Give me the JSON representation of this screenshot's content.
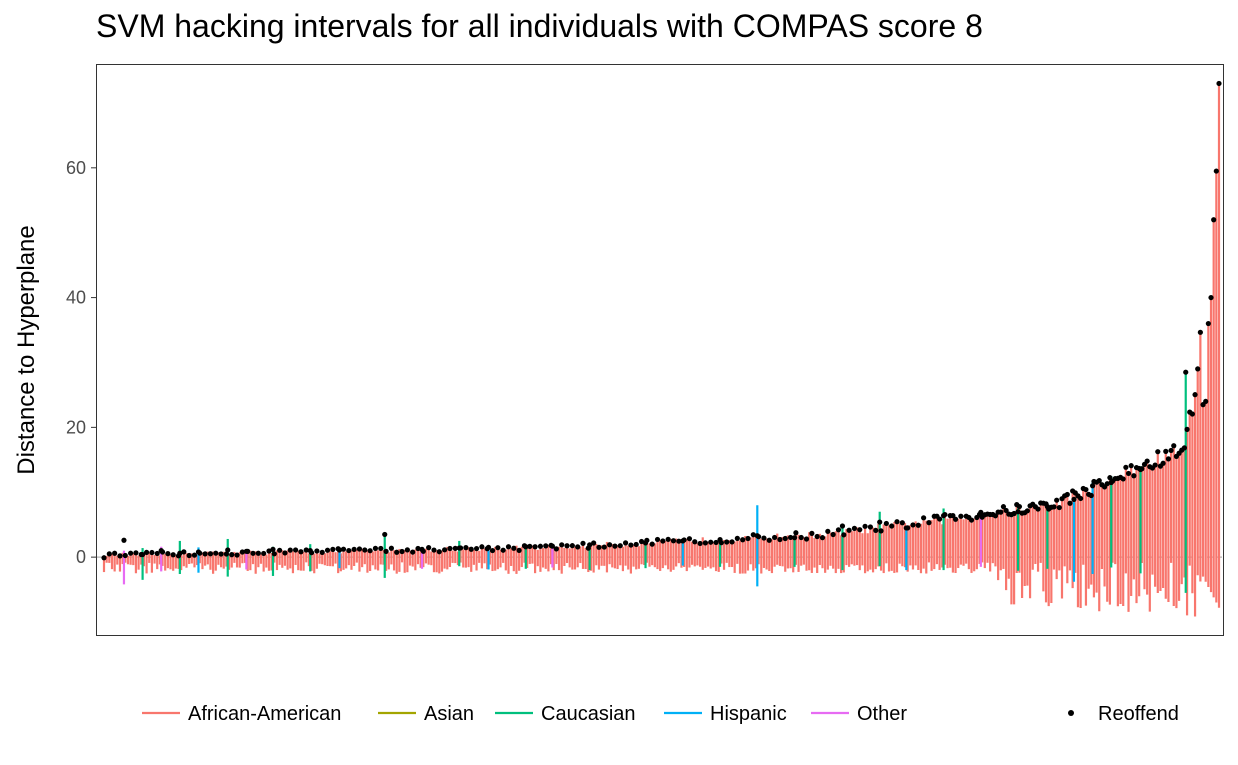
{
  "chart_data": {
    "type": "interval",
    "title": "SVM hacking intervals for all individuals with COMPAS score 8",
    "xlabel": "",
    "ylabel": "Distance to Hyperplane",
    "ylim": [
      -12,
      76
    ],
    "yticks": [
      0,
      20,
      40,
      60
    ],
    "grid": false,
    "reference_line": 0,
    "legend_position": "bottom",
    "series": [
      {
        "name": "African-American",
        "color": "#F8766D"
      },
      {
        "name": "Asian",
        "color": "#A3A500"
      },
      {
        "name": "Caucasian",
        "color": "#00BF7D"
      },
      {
        "name": "Hispanic",
        "color": "#00B0F6"
      },
      {
        "name": "Other",
        "color": "#E76BF3"
      }
    ],
    "points_legend": "Reoffend",
    "highlights": [
      {
        "index": 2,
        "group": "Other",
        "low": -4.2,
        "high": 1.0,
        "point": 2.6
      },
      {
        "index": 4,
        "group": "Caucasian",
        "low": -3.5,
        "high": 1.4,
        "point": 0.4
      },
      {
        "index": 6,
        "group": "Other",
        "low": -2.2,
        "high": 1.6,
        "point": 1.0
      },
      {
        "index": 8,
        "group": "Caucasian",
        "low": -2.6,
        "high": 2.5,
        "point": 0.6
      },
      {
        "index": 10,
        "group": "Hispanic",
        "low": -2.4,
        "high": 1.5,
        "point": 0.8
      },
      {
        "index": 13,
        "group": "Caucasian",
        "low": -3.0,
        "high": 2.8,
        "point": 1.1
      },
      {
        "index": 15,
        "group": "Other",
        "low": -1.9,
        "high": 1.2,
        "point": 0.9
      },
      {
        "index": 18,
        "group": "Caucasian",
        "low": -2.9,
        "high": 1.6,
        "point": 1.2
      },
      {
        "index": 22,
        "group": "Caucasian",
        "low": -2.2,
        "high": 2.0,
        "point": 1.0
      },
      {
        "index": 25,
        "group": "Hispanic",
        "low": -1.7,
        "high": 1.1,
        "point": 1.1
      },
      {
        "index": 30,
        "group": "Caucasian",
        "low": -3.2,
        "high": 3.5,
        "point": 3.5
      },
      {
        "index": 34,
        "group": "Other",
        "low": -1.8,
        "high": 1.2,
        "point": 1.2
      },
      {
        "index": 38,
        "group": "Caucasian",
        "low": -1.4,
        "high": 2.5,
        "point": 1.4
      },
      {
        "index": 41,
        "group": "Hispanic",
        "low": -1.9,
        "high": 1.6,
        "point": 1.5
      },
      {
        "index": 45,
        "group": "Caucasian",
        "low": -1.8,
        "high": 1.6,
        "point": 1.6
      },
      {
        "index": 48,
        "group": "Other",
        "low": -1.6,
        "high": 1.7,
        "point": 1.7
      },
      {
        "index": 52,
        "group": "Caucasian",
        "low": -2.0,
        "high": 2.2,
        "point": 1.9
      },
      {
        "index": 58,
        "group": "Caucasian",
        "low": -1.7,
        "high": 2.6,
        "point": 2.2
      },
      {
        "index": 62,
        "group": "Hispanic",
        "low": -1.3,
        "high": 2.5,
        "point": 2.5
      },
      {
        "index": 66,
        "group": "Caucasian",
        "low": -1.5,
        "high": 3.0,
        "point": 2.7
      },
      {
        "index": 70,
        "group": "Hispanic",
        "low": -4.5,
        "high": 8.0,
        "point": 3.3
      },
      {
        "index": 74,
        "group": "Caucasian",
        "low": -1.5,
        "high": 3.0,
        "point": 3.0
      },
      {
        "index": 79,
        "group": "Caucasian",
        "low": -2.0,
        "high": 4.8,
        "point": 4.8
      },
      {
        "index": 83,
        "group": "Caucasian",
        "low": -1.4,
        "high": 7.0,
        "point": 5.4
      },
      {
        "index": 86,
        "group": "Hispanic",
        "low": -2.0,
        "high": 4.5,
        "point": 4.5
      },
      {
        "index": 90,
        "group": "Caucasian",
        "low": -2.0,
        "high": 7.5,
        "point": 6.4
      },
      {
        "index": 94,
        "group": "Other",
        "low": -1.5,
        "high": 6.9,
        "point": 6.9
      },
      {
        "index": 98,
        "group": "Caucasian",
        "low": -2.1,
        "high": 7.5,
        "point": 7.0
      },
      {
        "index": 101,
        "group": "Caucasian",
        "low": -1.8,
        "high": 7.8,
        "point": 7.8
      },
      {
        "index": 104,
        "group": "Hispanic",
        "low": -3.8,
        "high": 9.2,
        "point": 8.9
      },
      {
        "index": 106,
        "group": "Hispanic",
        "low": -2.6,
        "high": 11.5,
        "point": 11.0
      },
      {
        "index": 108,
        "group": "Caucasian",
        "low": -1.6,
        "high": 12.5,
        "point": 11.5
      },
      {
        "index": 111,
        "group": "Caucasian",
        "low": -2.5,
        "high": 14.0,
        "point": 13.5
      },
      {
        "index": 116,
        "group": "Caucasian",
        "low": -5.5,
        "high": 28.5,
        "point": 28.5
      }
    ]
  }
}
